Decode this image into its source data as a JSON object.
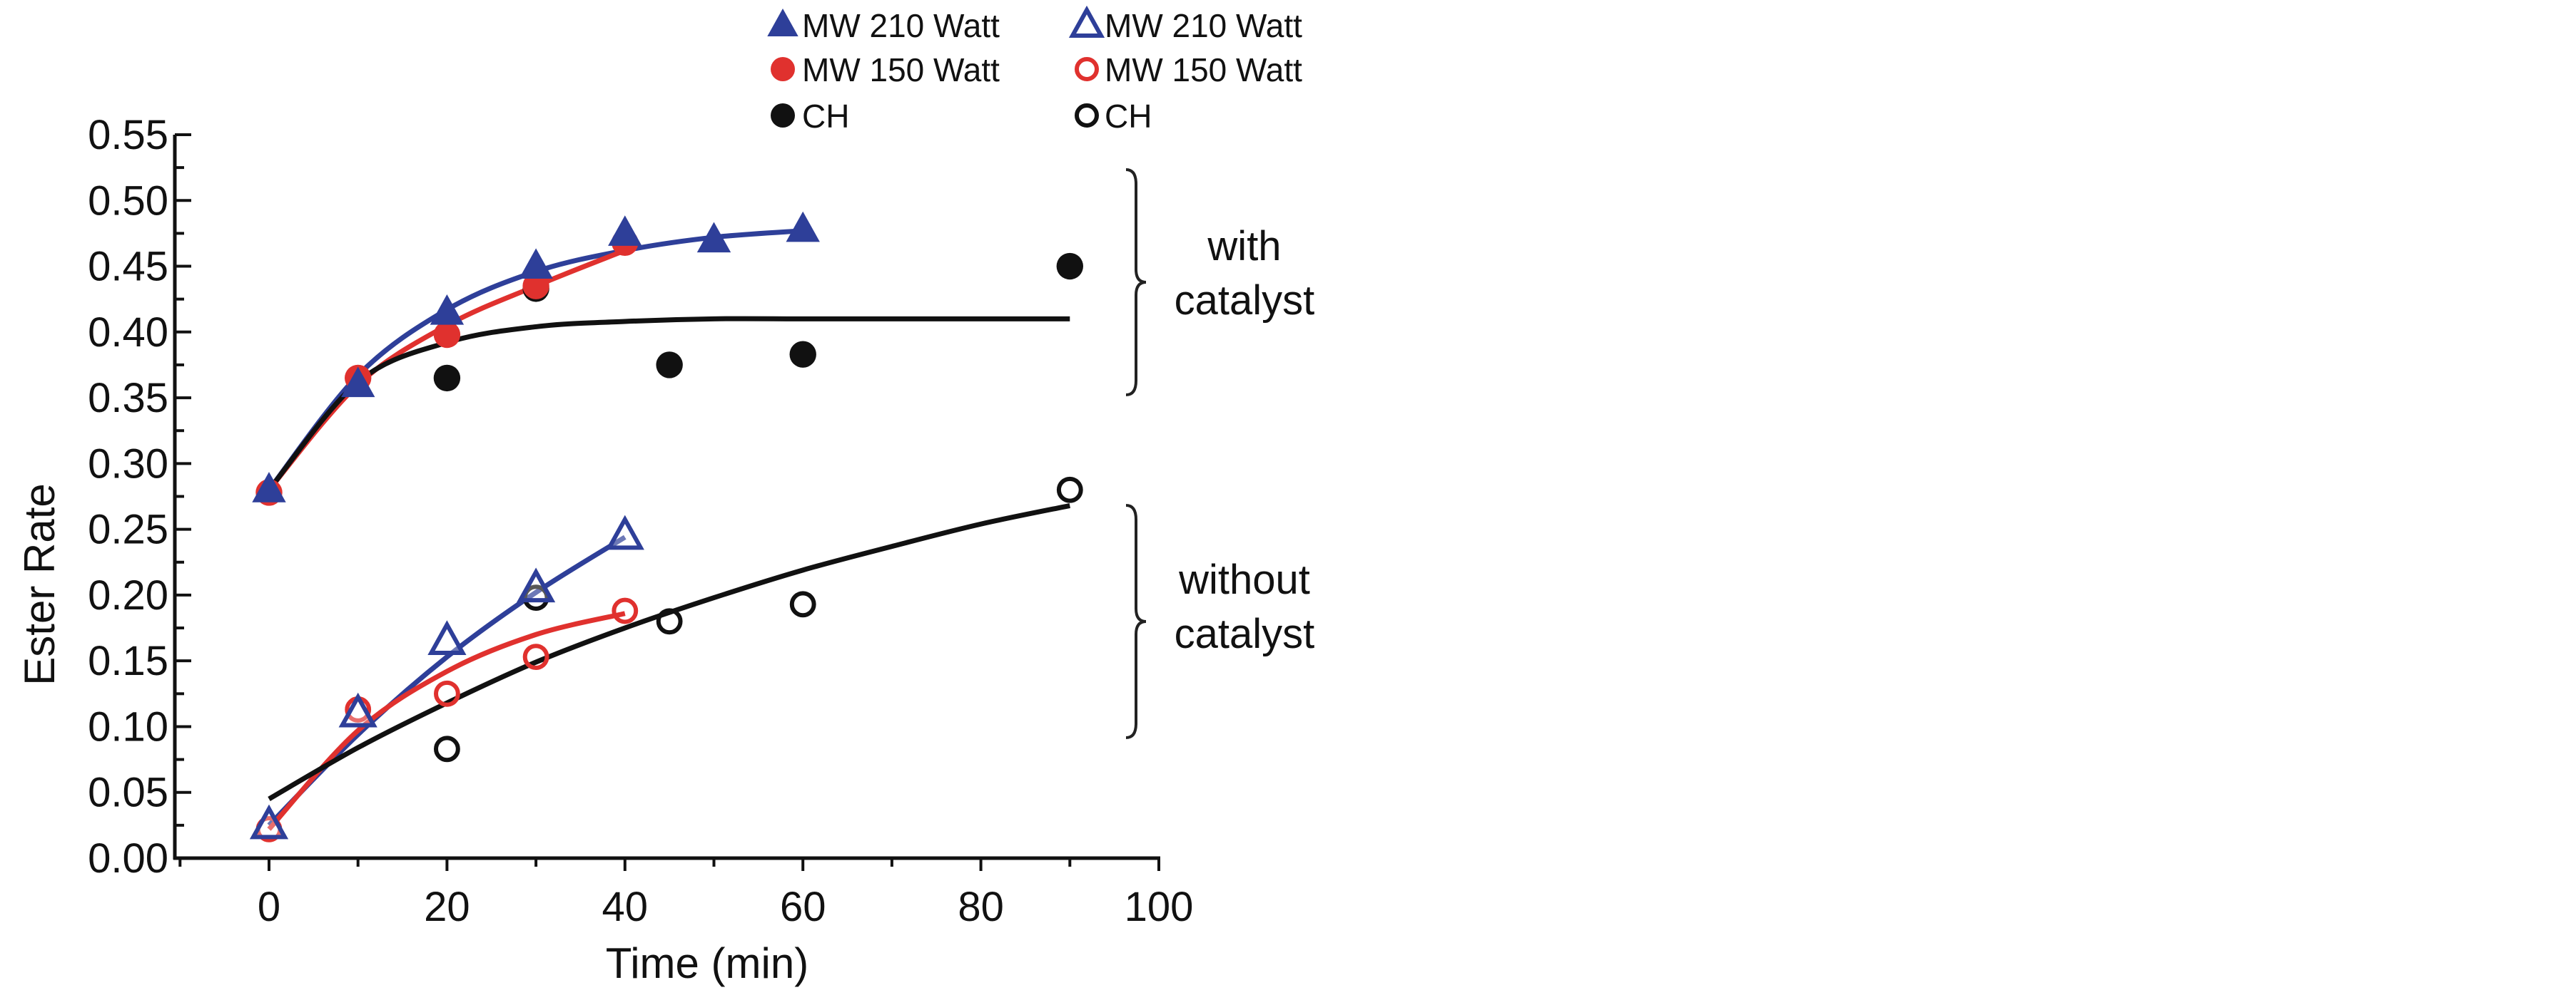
{
  "chart_data": {
    "type": "scatter",
    "xlabel": "Time (min)",
    "ylabel": "Ester Rate",
    "xlim": [
      -10,
      100
    ],
    "ylim": [
      0,
      0.55
    ],
    "x_ticks": [
      "0",
      "20",
      "40",
      "60",
      "80",
      "100"
    ],
    "y_ticks": [
      "0.00",
      "0.05",
      "0.10",
      "0.15",
      "0.20",
      "0.25",
      "0.30",
      "0.35",
      "0.40",
      "0.45",
      "0.50",
      "0.55"
    ],
    "grid": false,
    "legend_position": "top",
    "groups": [
      {
        "label_lines": [
          "with",
          "catalyst"
        ]
      },
      {
        "label_lines": [
          "without",
          "catalyst"
        ]
      }
    ],
    "series": [
      {
        "name": "MW 210 Watt",
        "group": 0,
        "marker": "triangle-filled",
        "color": "#2e3f99",
        "x": [
          0,
          10,
          20,
          30,
          40,
          50,
          60
        ],
        "y": [
          0.28,
          0.36,
          0.415,
          0.45,
          0.475,
          0.47,
          0.478
        ],
        "fit": {
          "x": [
            0,
            10,
            20,
            30,
            40,
            50,
            60
          ],
          "y": [
            0.28,
            0.367,
            0.417,
            0.446,
            0.462,
            0.472,
            0.477
          ]
        }
      },
      {
        "name": "MW 150 Watt",
        "group": 0,
        "marker": "circle-filled",
        "color": "#e0312e",
        "x": [
          0,
          10,
          20,
          30,
          40
        ],
        "y": [
          0.278,
          0.365,
          0.398,
          0.435,
          0.468
        ],
        "fit": {
          "x": [
            0,
            10,
            20,
            30,
            40
          ],
          "y": [
            0.28,
            0.36,
            0.405,
            0.435,
            0.462
          ]
        }
      },
      {
        "name": "CH",
        "group": 0,
        "marker": "circle-filled",
        "color": "#111111",
        "x": [
          20,
          30,
          45,
          60,
          90
        ],
        "y": [
          0.365,
          0.433,
          0.375,
          0.383,
          0.45
        ],
        "fit": {
          "x": [
            0,
            10,
            20,
            30,
            40,
            50,
            60,
            70,
            80,
            90
          ],
          "y": [
            0.28,
            0.362,
            0.392,
            0.404,
            0.408,
            0.41,
            0.41,
            0.41,
            0.41,
            0.41
          ]
        }
      },
      {
        "name": "MW 210 Watt",
        "group": 1,
        "marker": "triangle-open",
        "color": "#2e3f99",
        "x": [
          0,
          10,
          20,
          30,
          40
        ],
        "y": [
          0.025,
          0.11,
          0.165,
          0.205,
          0.245
        ],
        "fit": {
          "x": [
            0,
            10,
            20,
            30,
            40
          ],
          "y": [
            0.025,
            0.094,
            0.153,
            0.202,
            0.244
          ]
        }
      },
      {
        "name": "MW 150 Watt",
        "group": 1,
        "marker": "circle-open",
        "color": "#e0312e",
        "x": [
          0,
          10,
          20,
          30,
          40
        ],
        "y": [
          0.022,
          0.113,
          0.125,
          0.153,
          0.188
        ],
        "fit": {
          "x": [
            0,
            10,
            20,
            30,
            40
          ],
          "y": [
            0.022,
            0.097,
            0.142,
            0.17,
            0.186
          ]
        }
      },
      {
        "name": "CH",
        "group": 1,
        "marker": "circle-open",
        "color": "#111111",
        "x": [
          20,
          30,
          45,
          60,
          90
        ],
        "y": [
          0.083,
          0.198,
          0.18,
          0.193,
          0.28
        ],
        "fit": {
          "x": [
            0,
            10,
            20,
            30,
            40,
            50,
            60,
            70,
            80,
            90
          ],
          "y": [
            0.045,
            0.084,
            0.118,
            0.149,
            0.175,
            0.198,
            0.219,
            0.237,
            0.254,
            0.268
          ]
        }
      }
    ]
  }
}
